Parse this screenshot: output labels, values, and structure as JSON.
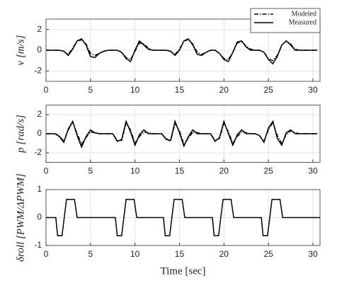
{
  "chart_data": [
    {
      "type": "line",
      "ylabel": "v [m/s]",
      "x": [
        0,
        0.5,
        1,
        1.5,
        2,
        2.5,
        3,
        3.5,
        4,
        4.5,
        5,
        5.5,
        6,
        6.5,
        7,
        7.5,
        8,
        8.5,
        9,
        9.5,
        10,
        10.5,
        11,
        11.5,
        12,
        12.5,
        13,
        13.5,
        14,
        14.5,
        15,
        15.5,
        16,
        16.5,
        17,
        17.5,
        18,
        18.5,
        19,
        19.5,
        20,
        20.5,
        21,
        21.5,
        22,
        22.5,
        23,
        23.5,
        24,
        24.5,
        25,
        25.5,
        26,
        26.5,
        27,
        27.5,
        28,
        28.5,
        29,
        29.5,
        30,
        30.5
      ],
      "series": [
        {
          "name": "Modeled",
          "color": "#000000",
          "style": "dashdot",
          "values": [
            0,
            0,
            0,
            0,
            -0.1,
            -0.4,
            0.2,
            0.9,
            1.0,
            0.6,
            -0.3,
            -0.5,
            -0.3,
            -0.1,
            0,
            0,
            0,
            -0.2,
            -0.7,
            -0.9,
            -0.1,
            0.7,
            0.6,
            0.2,
            0,
            0,
            0,
            0,
            -0.1,
            -0.4,
            0.1,
            0.9,
            1.0,
            0.6,
            -0.2,
            -0.4,
            -0.2,
            0,
            0,
            -0.3,
            -0.8,
            -0.9,
            -0.2,
            0.7,
            0.8,
            0.4,
            0.1,
            0,
            0,
            -0.2,
            -0.8,
            -1.0,
            -0.5,
            0.5,
            0.9,
            0.6,
            0.1,
            0,
            0,
            0,
            0,
            0
          ]
        },
        {
          "name": "Measured",
          "color": "#000000",
          "style": "solid",
          "values": [
            0,
            0,
            0,
            0,
            -0.1,
            -0.5,
            0.1,
            0.9,
            1.1,
            0.5,
            -0.6,
            -0.7,
            -0.3,
            -0.1,
            0,
            0,
            0,
            -0.2,
            -0.8,
            -1.1,
            0,
            0.9,
            0.5,
            0.1,
            0,
            0,
            0,
            0,
            -0.1,
            -0.5,
            0,
            0.9,
            1.1,
            0.5,
            -0.4,
            -0.5,
            -0.2,
            0,
            0,
            -0.3,
            -0.9,
            -1.1,
            -0.2,
            0.8,
            0.9,
            0.3,
            0,
            0,
            0,
            -0.2,
            -0.9,
            -1.3,
            -0.6,
            0.5,
            0.9,
            0.5,
            0,
            0,
            0,
            0,
            0,
            0
          ]
        }
      ],
      "xlim": [
        0,
        30.8
      ],
      "xticks": [
        0,
        5,
        10,
        15,
        20,
        25,
        30
      ],
      "ylim": [
        -3,
        3
      ],
      "yticks": [
        -2,
        0,
        2
      ],
      "grid": true,
      "legend": "upper right"
    },
    {
      "type": "line",
      "ylabel": "p [rad/s]",
      "x": [
        0,
        0.5,
        1,
        1.5,
        2,
        2.5,
        3,
        3.5,
        4,
        4.5,
        5,
        5.5,
        6,
        6.5,
        7,
        7.5,
        8,
        8.5,
        9,
        9.5,
        10,
        10.5,
        11,
        11.5,
        12,
        12.5,
        13,
        13.5,
        14,
        14.5,
        15,
        15.5,
        16,
        16.5,
        17,
        17.5,
        18,
        18.5,
        19,
        19.5,
        20,
        20.5,
        21,
        21.5,
        22,
        22.5,
        23,
        23.5,
        24,
        24.5,
        25,
        25.5,
        26,
        26.5,
        27,
        27.5,
        28,
        28.5,
        29,
        29.5,
        30,
        30.5
      ],
      "series": [
        {
          "color": "#000000",
          "style": "dashdot",
          "values": [
            0,
            0,
            0,
            -0.2,
            -0.8,
            0.4,
            1.2,
            0,
            -1.1,
            -0.4,
            0.2,
            0.1,
            0,
            0,
            0,
            0,
            -0.7,
            -0.7,
            1.1,
            0.4,
            -1.0,
            -0.3,
            0.2,
            0.1,
            0,
            0,
            0,
            -0.5,
            -0.8,
            1.1,
            0.3,
            -1.1,
            -0.5,
            0.2,
            0.1,
            0,
            0,
            0,
            -0.7,
            -0.5,
            1.1,
            0.2,
            -1.0,
            -0.3,
            0.2,
            0.1,
            0,
            0,
            -0.2,
            -0.8,
            0.4,
            1.2,
            -0.2,
            -1.0,
            -0.1,
            0.3,
            0.1,
            0,
            0,
            0,
            0,
            0
          ]
        },
        {
          "color": "#000000",
          "style": "solid",
          "values": [
            0,
            0,
            0,
            -0.3,
            -0.9,
            0.5,
            1.3,
            -0.2,
            -1.4,
            -0.3,
            0.4,
            0.1,
            0,
            0,
            0,
            0,
            -0.8,
            -0.6,
            1.3,
            0.2,
            -1.2,
            -0.1,
            0.4,
            0,
            0,
            0,
            0,
            -0.6,
            -0.7,
            1.3,
            0.1,
            -1.3,
            -0.3,
            0.4,
            0,
            0,
            0,
            0,
            -0.8,
            -0.4,
            1.3,
            0,
            -1.2,
            -0.1,
            0.4,
            0,
            0,
            0,
            -0.2,
            -0.9,
            0.6,
            1.3,
            -0.5,
            -1.2,
            0.1,
            0.4,
            0,
            0,
            0,
            0,
            0,
            0
          ]
        }
      ],
      "xlim": [
        0,
        30.8
      ],
      "xticks": [
        0,
        5,
        10,
        15,
        20,
        25,
        30
      ],
      "ylim": [
        -3,
        3
      ],
      "yticks": [
        -2,
        0,
        2
      ],
      "grid": true
    },
    {
      "type": "line",
      "ylabel": "δroll [PWM/ΔPWM]",
      "xlabel": "Time [sec]",
      "x": [
        0,
        1.1,
        1.3,
        1.8,
        2.3,
        3.2,
        3.5,
        7.8,
        8.0,
        8.5,
        9.0,
        9.9,
        10.2,
        13.2,
        13.4,
        13.9,
        14.4,
        15.3,
        15.6,
        18.7,
        18.9,
        19.4,
        19.9,
        20.8,
        21.1,
        24.2,
        24.4,
        24.9,
        25.4,
        26.3,
        26.6,
        30.8
      ],
      "series": [
        {
          "color": "#000000",
          "style": "solid",
          "values": [
            0,
            0,
            -0.65,
            -0.65,
            0.65,
            0.65,
            0,
            0,
            -0.65,
            -0.65,
            0.65,
            0.65,
            0,
            0,
            -0.65,
            -0.65,
            0.65,
            0.65,
            0,
            0,
            -0.65,
            -0.65,
            0.65,
            0.65,
            0,
            0,
            -0.65,
            -0.65,
            0.65,
            0.65,
            0,
            0
          ]
        }
      ],
      "xlim": [
        0,
        30.8
      ],
      "xticks": [
        0,
        5,
        10,
        15,
        20,
        25,
        30
      ],
      "ylim": [
        -1,
        1
      ],
      "yticks": [
        -1,
        0,
        1
      ],
      "grid": true
    }
  ]
}
